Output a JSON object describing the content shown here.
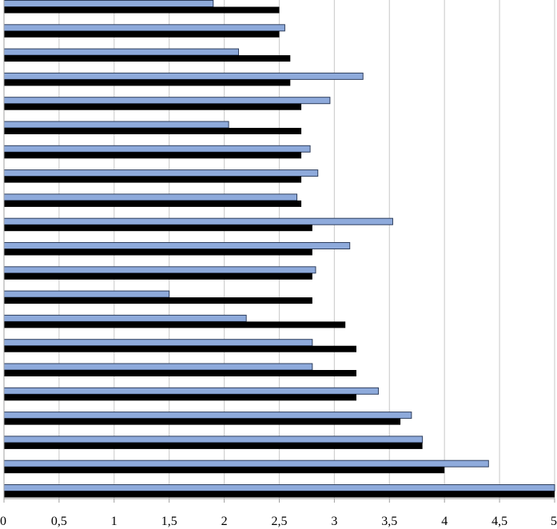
{
  "chart_data": {
    "type": "bar",
    "orientation": "horizontal",
    "title": "",
    "xlabel": "",
    "ylabel": "",
    "xlim": [
      0,
      5
    ],
    "x_ticks": [
      0,
      0.5,
      1,
      1.5,
      2,
      2.5,
      3,
      3.5,
      4,
      4.5,
      5
    ],
    "x_tick_labels": [
      "0",
      "0,5",
      "1",
      "1,5",
      "2",
      "2,5",
      "3",
      "3,5",
      "4",
      "4,5",
      "5"
    ],
    "category_labels_visible": false,
    "grid": {
      "vertical": true,
      "horizontal": false
    },
    "legend": "none",
    "series": [
      {
        "color": "#8eaadb",
        "values": [
          1.9,
          2.55,
          2.13,
          3.26,
          2.96,
          2.04,
          2.78,
          2.85,
          2.66,
          3.53,
          3.14,
          2.83,
          1.5,
          2.2,
          2.8,
          2.8,
          3.4,
          3.7,
          3.8,
          4.4,
          5.0
        ]
      },
      {
        "color": "#000000",
        "values": [
          2.5,
          2.5,
          2.6,
          2.6,
          2.7,
          2.7,
          2.7,
          2.7,
          2.7,
          2.8,
          2.8,
          2.8,
          2.8,
          3.1,
          3.2,
          3.2,
          3.2,
          3.6,
          3.8,
          4.0,
          5.0
        ]
      }
    ]
  }
}
